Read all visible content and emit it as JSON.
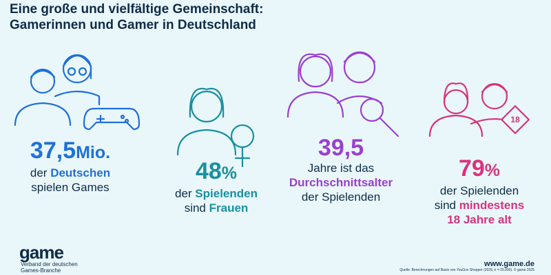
{
  "header": {
    "title_lines": [
      "Eine große und vielfältige Gemeinschaft:",
      "Gamerinnen und Gamer in Deutschland"
    ]
  },
  "stats": [
    {
      "number": "37,5",
      "unit": "Mio.",
      "color": "#1f6fd9",
      "lines": [
        [
          {
            "text": "der ",
            "bold": false
          },
          {
            "text": "Deutschen",
            "bold": true
          }
        ],
        [
          {
            "text": "spielen Games",
            "bold": false
          }
        ]
      ]
    },
    {
      "number": "48",
      "unit": "%",
      "color": "#1a8fa0",
      "lines": [
        [
          {
            "text": "der ",
            "bold": false
          },
          {
            "text": "Spielenden",
            "bold": true
          }
        ],
        [
          {
            "text": "sind ",
            "bold": false
          },
          {
            "text": "Frauen",
            "bold": true
          }
        ]
      ]
    },
    {
      "number": "39,5",
      "color": "#9a3fd0",
      "lines": [
        [
          {
            "text": "Jahre ist das",
            "bold": false
          }
        ],
        [
          {
            "text": "Durchschnittsalter",
            "bold": true
          }
        ],
        [
          {
            "text": "der Spielenden",
            "bold": false
          }
        ]
      ]
    },
    {
      "number": "79",
      "unit": "%",
      "color": "#d9337c",
      "badge": "18",
      "lines": [
        [
          {
            "text": "der Spielenden",
            "bold": false
          }
        ],
        [
          {
            "text": "sind ",
            "bold": false
          },
          {
            "text": "mindestens",
            "bold": true
          }
        ],
        [
          {
            "text": "18 Jahre alt",
            "bold": true
          }
        ]
      ]
    }
  ],
  "footer": {
    "logo": "game",
    "tagline_lines": [
      "Verband der deutschen",
      "Games-Branche"
    ],
    "url": "www.game.de",
    "source": "Quelle: Berechnungen auf Basis von YouGov Shopper (2025; n = 25.000). © game 2025"
  }
}
